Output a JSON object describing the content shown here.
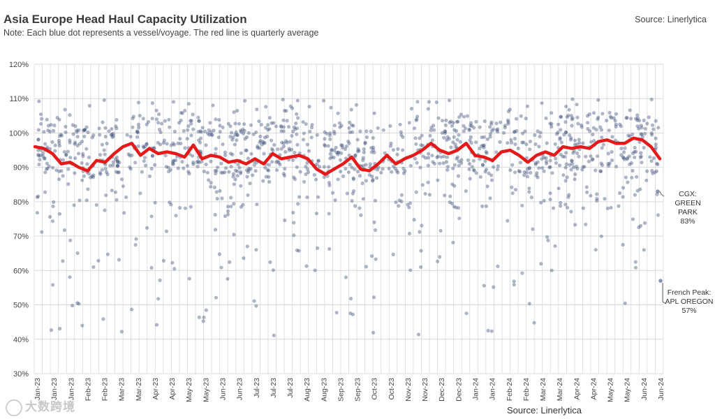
{
  "header": {
    "title": "Asia Europe Head Haul Capacity Utilization",
    "subtitle": "Note: Each blue dot represents a vessel/voyage. The red line is quarterly average",
    "source_top": "Source: Linerlytica",
    "source_bottom": "Source: Linerlytica"
  },
  "watermark": {
    "text": "大数跨境"
  },
  "annotations": {
    "cgx": {
      "line1": "CGX:",
      "line2": "GREEN PARK",
      "line3": "83%",
      "value": 83
    },
    "french_peak": {
      "line1": "French Peak:",
      "line2": "APL OREGON",
      "line3": "57%",
      "value": 57
    }
  },
  "colors": {
    "dot": "#3b4f7a",
    "line": "#e41a1a",
    "grid": "#d9d9d9"
  },
  "chart_data": {
    "type": "scatter",
    "title": "Asia Europe Head Haul Capacity Utilization",
    "xlabel": "",
    "ylabel": "",
    "ylim": [
      30,
      120
    ],
    "yticks": [
      "30%",
      "40%",
      "50%",
      "60%",
      "70%",
      "80%",
      "90%",
      "100%",
      "110%",
      "120%"
    ],
    "x_tick_labels": [
      "Jan-23",
      "Jan-23",
      "Jan-23",
      "Feb-23",
      "Feb-23",
      "Mar-23",
      "Mar-23",
      "Apr-23",
      "Apr-23",
      "May-23",
      "May-23",
      "Jun-23",
      "Jun-23",
      "Jul-23",
      "Jul-23",
      "Jul-23",
      "Aug-23",
      "Aug-23",
      "Sep-23",
      "Sep-23",
      "Oct-23",
      "Oct-23",
      "Nov-23",
      "Nov-23",
      "Dec-23",
      "Dec-23",
      "Jan-24",
      "Jan-24",
      "Feb-24",
      "Feb-24",
      "Mar-24",
      "Mar-24",
      "Apr-24",
      "Apr-24",
      "May-24",
      "May-24",
      "Jun-24",
      "Jun-24"
    ],
    "grid": true,
    "series": [
      {
        "name": "Vessel/voyage utilization",
        "kind": "scatter",
        "y_range_pct": [
          41,
          110
        ],
        "dense_band_pct": [
          88,
          104
        ]
      },
      {
        "name": "Quarterly average",
        "kind": "line",
        "values": [
          96,
          95.5,
          94,
          91,
          91.5,
          90,
          89,
          92,
          91.5,
          94,
          96,
          97,
          93.5,
          95.5,
          94,
          94.5,
          94,
          93,
          96.5,
          92.5,
          93.5,
          93,
          91.5,
          92,
          91,
          92.5,
          91,
          94,
          92.5,
          93,
          93.5,
          92.5,
          89.5,
          88,
          89.5,
          91,
          93,
          89.5,
          89,
          91,
          93.5,
          91,
          92.5,
          93.5,
          95,
          97,
          95,
          94,
          95,
          97,
          93.5,
          93,
          92,
          94.5,
          95,
          93.5,
          91.5,
          93.5,
          94.5,
          93.5,
          96,
          95.5,
          96,
          95.5,
          97.5,
          98,
          97,
          97,
          98.5,
          98,
          96,
          92.5
        ]
      }
    ]
  }
}
